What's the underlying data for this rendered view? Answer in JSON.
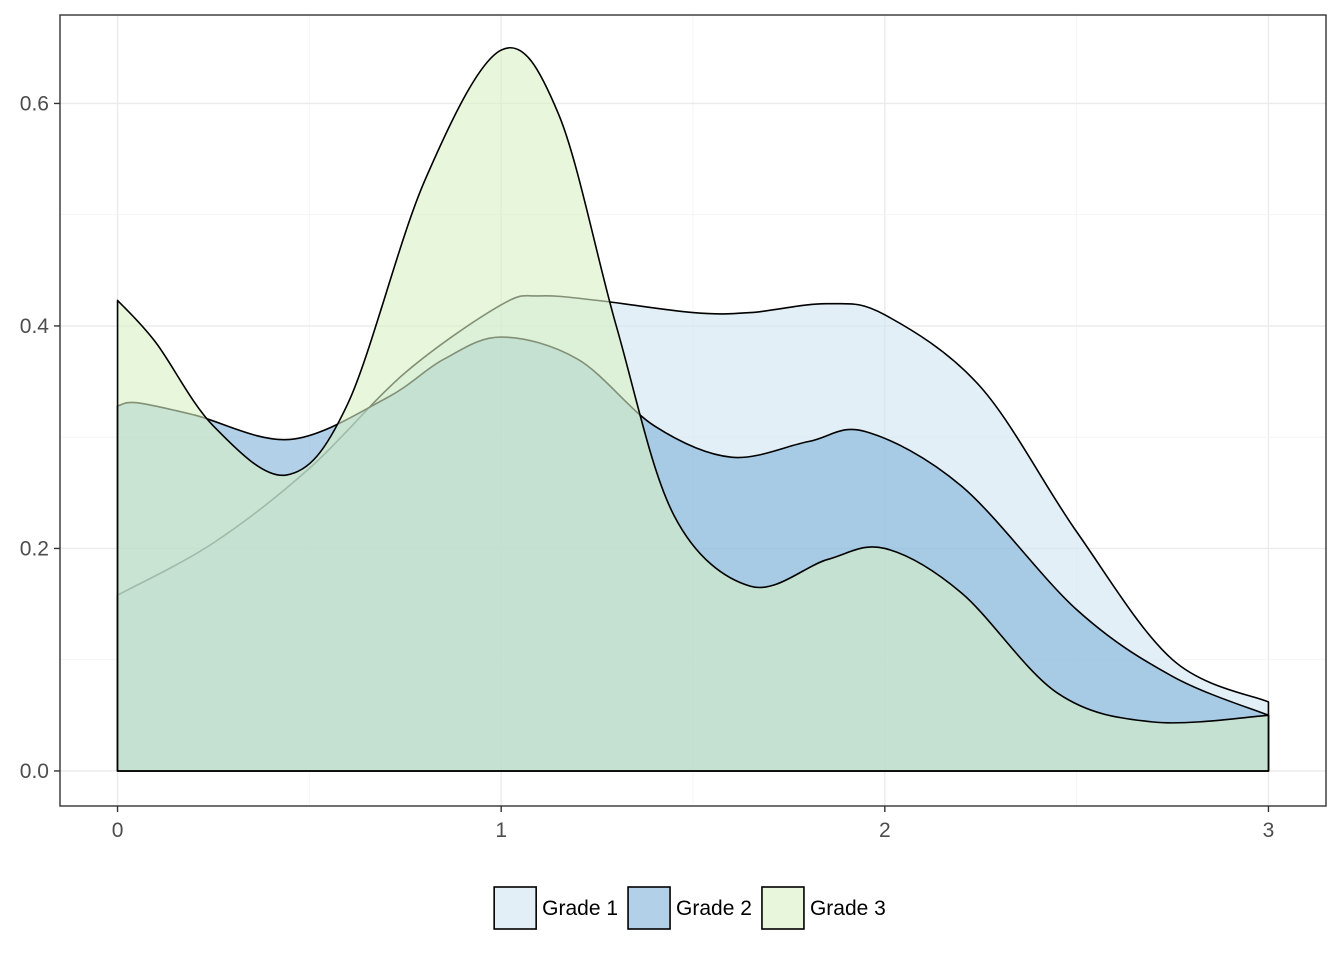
{
  "chart_data": {
    "type": "area",
    "xlim": [
      -0.15,
      3.15
    ],
    "ylim": [
      -0.0315,
      0.6795
    ],
    "x_ticks": [
      0,
      1,
      2,
      3
    ],
    "x_tick_labels": [
      "0",
      "1",
      "2",
      "3"
    ],
    "y_ticks": [
      0.0,
      0.2,
      0.4,
      0.6
    ],
    "y_tick_labels": [
      "0.0",
      "0.2",
      "0.4",
      "0.6"
    ],
    "grid": true,
    "legend_position": "bottom",
    "series": [
      {
        "name": "Grade 1",
        "color": "#d1e5f0",
        "x": [
          0,
          0.25,
          0.5,
          0.75,
          1.0,
          1.1,
          1.25,
          1.5,
          1.65,
          1.85,
          2.0,
          2.25,
          2.5,
          2.75,
          3.0
        ],
        "y": [
          0.158,
          0.205,
          0.272,
          0.358,
          0.419,
          0.427,
          0.423,
          0.412,
          0.412,
          0.42,
          0.41,
          0.345,
          0.215,
          0.1,
          0.062
        ]
      },
      {
        "name": "Grade 2",
        "color": "#7eb3d8",
        "x": [
          0,
          0.05,
          0.2,
          0.45,
          0.7,
          0.85,
          1.0,
          1.2,
          1.4,
          1.6,
          1.8,
          1.95,
          2.2,
          2.5,
          2.75,
          3.0
        ],
        "y": [
          0.328,
          0.331,
          0.32,
          0.298,
          0.335,
          0.37,
          0.39,
          0.37,
          0.31,
          0.282,
          0.296,
          0.305,
          0.256,
          0.145,
          0.085,
          0.05
        ]
      },
      {
        "name": "Grade 3",
        "color": "#d9f0c5",
        "x": [
          0,
          0.1,
          0.25,
          0.44,
          0.6,
          0.8,
          1.0,
          1.15,
          1.3,
          1.45,
          1.65,
          1.85,
          2.0,
          2.2,
          2.45,
          2.7,
          3.0
        ],
        "y": [
          0.423,
          0.385,
          0.31,
          0.266,
          0.33,
          0.53,
          0.648,
          0.59,
          0.4,
          0.23,
          0.166,
          0.19,
          0.2,
          0.16,
          0.07,
          0.044,
          0.05
        ]
      }
    ]
  },
  "legend": {
    "items": [
      "Grade 1",
      "Grade 2",
      "Grade 3"
    ]
  }
}
